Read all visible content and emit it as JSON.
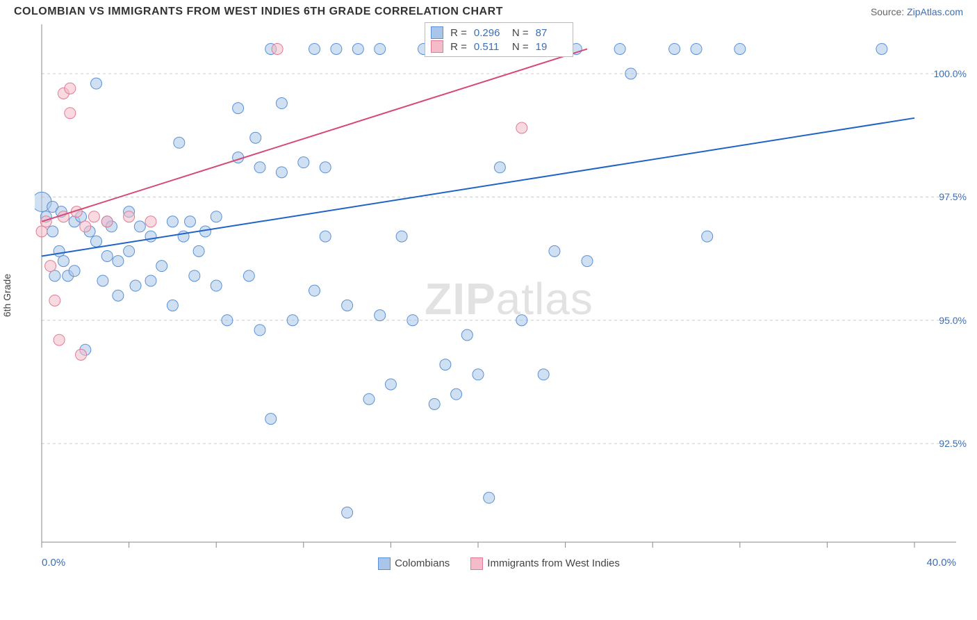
{
  "header": {
    "title": "COLOMBIAN VS IMMIGRANTS FROM WEST INDIES 6TH GRADE CORRELATION CHART",
    "source_prefix": "Source: ",
    "source_link": "ZipAtlas.com"
  },
  "axes": {
    "ylabel": "6th Grade",
    "xlim": [
      0,
      40
    ],
    "ylim": [
      90.5,
      101
    ],
    "x_left_label": "0.0%",
    "x_right_label": "40.0%",
    "yticks": [
      {
        "v": 92.5,
        "label": "92.5%"
      },
      {
        "v": 95.0,
        "label": "95.0%"
      },
      {
        "v": 97.5,
        "label": "97.5%"
      },
      {
        "v": 100.0,
        "label": "100.0%"
      }
    ],
    "xticks_minor": [
      0,
      4,
      8,
      12,
      16,
      20,
      24,
      28,
      32,
      36,
      40
    ],
    "grid_color": "#cccccc",
    "border_color": "#888888"
  },
  "watermark": {
    "text_a": "ZIP",
    "text_b": "atlas"
  },
  "legend_bottom": {
    "items": [
      {
        "label": "Colombians",
        "fill": "#a9c6ea",
        "stroke": "#5b8fd6"
      },
      {
        "label": "Immigrants from West Indies",
        "fill": "#f4bcc9",
        "stroke": "#e27a95"
      }
    ]
  },
  "stats": [
    {
      "swatch_fill": "#a9c6ea",
      "swatch_stroke": "#5b8fd6",
      "r_label": "R =",
      "r_value": "0.296",
      "n_label": "N =",
      "n_value": "87"
    },
    {
      "swatch_fill": "#f4bcc9",
      "swatch_stroke": "#e27a95",
      "r_label": "R =",
      "r_value": "0.511",
      "n_label": "N =",
      "n_value": "19"
    }
  ],
  "series": [
    {
      "name": "Colombians",
      "fill": "#a9c6ea",
      "stroke": "#5b8fd6",
      "marker_r": 8,
      "fill_opacity": 0.55,
      "trend": {
        "x1": 0,
        "y1": 96.3,
        "x2": 40,
        "y2": 99.1,
        "color": "#1f63c7",
        "width": 2
      },
      "points": [
        {
          "x": 0.0,
          "y": 97.4,
          "r": 14
        },
        {
          "x": 0.2,
          "y": 97.1
        },
        {
          "x": 0.5,
          "y": 97.3
        },
        {
          "x": 0.5,
          "y": 96.8
        },
        {
          "x": 0.8,
          "y": 96.4
        },
        {
          "x": 0.9,
          "y": 97.2
        },
        {
          "x": 1.0,
          "y": 96.2
        },
        {
          "x": 1.2,
          "y": 95.9
        },
        {
          "x": 1.5,
          "y": 97.0
        },
        {
          "x": 1.5,
          "y": 96.0
        },
        {
          "x": 1.8,
          "y": 97.1
        },
        {
          "x": 2.0,
          "y": 94.4
        },
        {
          "x": 2.2,
          "y": 96.8
        },
        {
          "x": 2.5,
          "y": 96.6
        },
        {
          "x": 2.5,
          "y": 99.8
        },
        {
          "x": 3.0,
          "y": 96.3
        },
        {
          "x": 3.0,
          "y": 97.0
        },
        {
          "x": 3.2,
          "y": 96.9
        },
        {
          "x": 3.5,
          "y": 96.2
        },
        {
          "x": 3.5,
          "y": 95.5
        },
        {
          "x": 4.0,
          "y": 96.4
        },
        {
          "x": 4.0,
          "y": 97.2
        },
        {
          "x": 4.5,
          "y": 96.9
        },
        {
          "x": 5.0,
          "y": 96.7
        },
        {
          "x": 5.0,
          "y": 95.8
        },
        {
          "x": 5.5,
          "y": 96.1
        },
        {
          "x": 6.0,
          "y": 97.0
        },
        {
          "x": 6.0,
          "y": 95.3
        },
        {
          "x": 6.5,
          "y": 96.7
        },
        {
          "x": 6.8,
          "y": 97.0
        },
        {
          "x": 7.0,
          "y": 95.9
        },
        {
          "x": 7.5,
          "y": 96.8
        },
        {
          "x": 8.0,
          "y": 97.1
        },
        {
          "x": 8.0,
          "y": 95.7
        },
        {
          "x": 8.5,
          "y": 95.0
        },
        {
          "x": 9.0,
          "y": 98.3
        },
        {
          "x": 9.0,
          "y": 99.3
        },
        {
          "x": 9.5,
          "y": 95.9
        },
        {
          "x": 9.8,
          "y": 98.7
        },
        {
          "x": 10.0,
          "y": 98.1
        },
        {
          "x": 10.0,
          "y": 94.8
        },
        {
          "x": 10.5,
          "y": 100.5
        },
        {
          "x": 10.5,
          "y": 93.0
        },
        {
          "x": 11.0,
          "y": 99.4
        },
        {
          "x": 11.0,
          "y": 98.0
        },
        {
          "x": 11.5,
          "y": 95.0
        },
        {
          "x": 12.0,
          "y": 98.2
        },
        {
          "x": 12.5,
          "y": 100.5
        },
        {
          "x": 12.5,
          "y": 95.6
        },
        {
          "x": 13.0,
          "y": 98.1
        },
        {
          "x": 13.0,
          "y": 96.7
        },
        {
          "x": 13.5,
          "y": 100.5
        },
        {
          "x": 14.0,
          "y": 95.3
        },
        {
          "x": 14.0,
          "y": 91.1
        },
        {
          "x": 14.5,
          "y": 100.5
        },
        {
          "x": 15.0,
          "y": 93.4
        },
        {
          "x": 15.5,
          "y": 95.1
        },
        {
          "x": 15.5,
          "y": 100.5
        },
        {
          "x": 16.0,
          "y": 93.7
        },
        {
          "x": 16.5,
          "y": 96.7
        },
        {
          "x": 17.0,
          "y": 95.0
        },
        {
          "x": 17.5,
          "y": 100.5
        },
        {
          "x": 18.0,
          "y": 93.3
        },
        {
          "x": 18.5,
          "y": 94.1
        },
        {
          "x": 19.0,
          "y": 93.5
        },
        {
          "x": 19.5,
          "y": 94.7
        },
        {
          "x": 20.0,
          "y": 93.9
        },
        {
          "x": 20.5,
          "y": 91.4
        },
        {
          "x": 21.0,
          "y": 98.1
        },
        {
          "x": 22.0,
          "y": 95.0
        },
        {
          "x": 22.5,
          "y": 100.5
        },
        {
          "x": 23.0,
          "y": 93.9
        },
        {
          "x": 23.5,
          "y": 96.4
        },
        {
          "x": 24.5,
          "y": 100.5
        },
        {
          "x": 25.0,
          "y": 96.2
        },
        {
          "x": 26.5,
          "y": 100.5
        },
        {
          "x": 27.0,
          "y": 100.0
        },
        {
          "x": 29.0,
          "y": 100.5
        },
        {
          "x": 30.0,
          "y": 100.5
        },
        {
          "x": 30.5,
          "y": 96.7
        },
        {
          "x": 32.0,
          "y": 100.5
        },
        {
          "x": 38.5,
          "y": 100.5
        },
        {
          "x": 0.6,
          "y": 95.9
        },
        {
          "x": 6.3,
          "y": 98.6
        },
        {
          "x": 2.8,
          "y": 95.8
        },
        {
          "x": 4.3,
          "y": 95.7
        },
        {
          "x": 7.2,
          "y": 96.4
        }
      ]
    },
    {
      "name": "Immigrants from West Indies",
      "fill": "#f4bcc9",
      "stroke": "#e27a95",
      "marker_r": 8,
      "fill_opacity": 0.55,
      "trend": {
        "x1": 0,
        "y1": 97.0,
        "x2": 25,
        "y2": 100.5,
        "color": "#d44a74",
        "width": 2
      },
      "points": [
        {
          "x": 0.0,
          "y": 96.8
        },
        {
          "x": 0.2,
          "y": 97.0
        },
        {
          "x": 0.4,
          "y": 96.1
        },
        {
          "x": 0.6,
          "y": 95.4
        },
        {
          "x": 0.8,
          "y": 94.6
        },
        {
          "x": 1.0,
          "y": 97.1
        },
        {
          "x": 1.0,
          "y": 99.6
        },
        {
          "x": 1.3,
          "y": 99.7
        },
        {
          "x": 1.3,
          "y": 99.2
        },
        {
          "x": 1.6,
          "y": 97.2
        },
        {
          "x": 2.0,
          "y": 96.9
        },
        {
          "x": 2.4,
          "y": 97.1
        },
        {
          "x": 3.0,
          "y": 97.0
        },
        {
          "x": 4.0,
          "y": 97.1
        },
        {
          "x": 5.0,
          "y": 97.0
        },
        {
          "x": 10.8,
          "y": 100.5
        },
        {
          "x": 22.0,
          "y": 98.9
        },
        {
          "x": 23.5,
          "y": 100.5
        },
        {
          "x": 1.8,
          "y": 94.3
        }
      ]
    }
  ]
}
